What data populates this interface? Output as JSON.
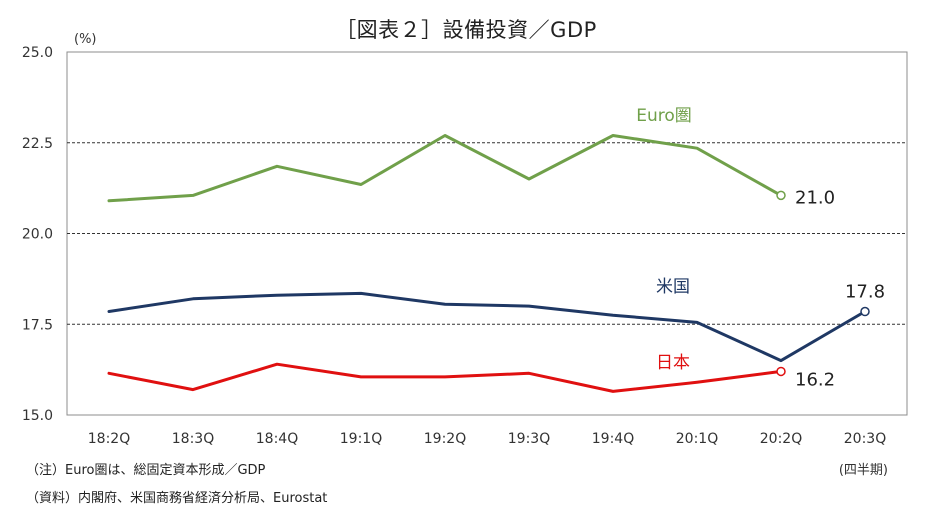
{
  "chart_data": {
    "type": "line",
    "title": "［図表２］設備投資／GDP",
    "ylabel": "(%)",
    "x_unit_label": "(四半期)",
    "ylim": [
      15.0,
      25.0
    ],
    "yticks": [
      "15.0",
      "17.5",
      "20.0",
      "22.5",
      "25.0"
    ],
    "dashed_gridlines": [
      17.5,
      20.0,
      22.5
    ],
    "categories": [
      "18:2Q",
      "18:3Q",
      "18:4Q",
      "19:1Q",
      "19:2Q",
      "19:3Q",
      "19:4Q",
      "20:1Q",
      "20:2Q",
      "20:3Q"
    ],
    "series": [
      {
        "name": "Euro圏",
        "color": "#70a04a",
        "values": [
          20.9,
          21.05,
          21.85,
          21.35,
          22.7,
          21.5,
          22.7,
          22.35,
          21.05,
          null
        ],
        "end_label": "21.0"
      },
      {
        "name": "米国",
        "color": "#1f3864",
        "values": [
          17.85,
          18.2,
          18.3,
          18.35,
          18.05,
          18.0,
          17.75,
          17.55,
          16.5,
          17.85
        ],
        "end_label": "17.8"
      },
      {
        "name": "日本",
        "color": "#e01010",
        "values": [
          16.15,
          15.7,
          16.4,
          16.05,
          16.05,
          16.15,
          15.65,
          15.9,
          16.2,
          null
        ],
        "end_label": "16.2"
      }
    ],
    "notes": [
      "（注）Euro圏は、総固定資本形成／GDP",
      "（資料）内閣府、米国商務省経済分析局、Eurostat"
    ]
  }
}
